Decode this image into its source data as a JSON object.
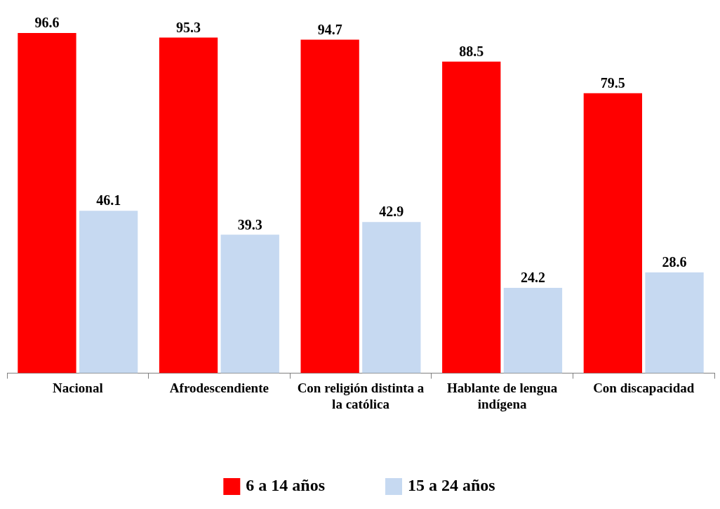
{
  "chart_data": {
    "type": "bar",
    "categories": [
      "Nacional",
      "Afrodescendiente",
      "Con religión distinta a la católica",
      "Hablante de lengua indígena",
      "Con discapacidad"
    ],
    "series": [
      {
        "name": "6 a 14 años",
        "color": "#ff0000",
        "values": [
          96.6,
          95.3,
          94.7,
          88.5,
          79.5
        ]
      },
      {
        "name": "15 a 24 años",
        "color": "#c6d9f1",
        "values": [
          46.1,
          39.3,
          42.9,
          24.2,
          28.6
        ]
      }
    ],
    "tick_labels": "x",
    "data_labels": true,
    "grid": false,
    "legend": "bottom"
  }
}
